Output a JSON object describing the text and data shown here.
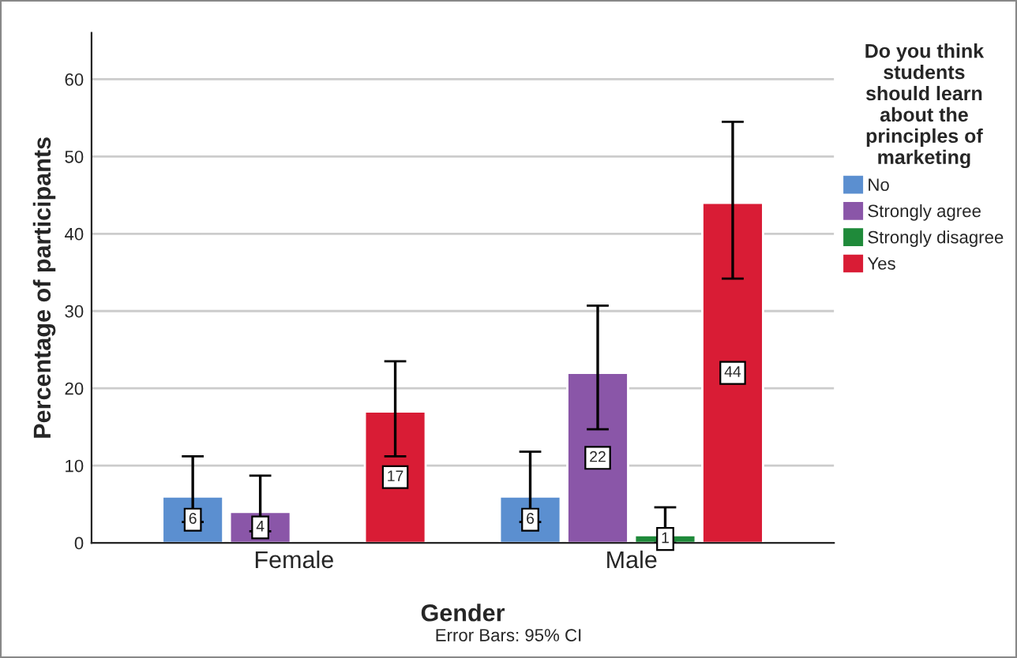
{
  "chart_data": {
    "type": "bar",
    "xlabel": "Gender",
    "ylabel": "Percentage of participants",
    "legend_title": "Do you think\nstudents\nshould learn\nabout the\nprinciples of\nmarketing",
    "categories": [
      "Female",
      "Male"
    ],
    "series": [
      {
        "name": "No",
        "color": "#5b8fd0",
        "values": [
          6,
          6
        ],
        "errors": [
          [
            2.7,
            11.2
          ],
          [
            2.7,
            11.8
          ]
        ]
      },
      {
        "name": "Strongly agree",
        "color": "#8a56a8",
        "values": [
          4,
          22
        ],
        "errors": [
          [
            1.5,
            8.7
          ],
          [
            14.7,
            30.7
          ]
        ]
      },
      {
        "name": "Strongly disagree",
        "color": "#1f8a3a",
        "values": [
          null,
          1
        ],
        "errors": [
          null,
          [
            0,
            4.6
          ]
        ]
      },
      {
        "name": "Yes",
        "color": "#d91c35",
        "values": [
          17,
          44
        ],
        "errors": [
          [
            11.2,
            23.5
          ],
          [
            34.2,
            54.5
          ]
        ]
      }
    ],
    "ylim": [
      0,
      66
    ],
    "yticks": [
      0,
      10,
      20,
      30,
      40,
      50,
      60
    ],
    "grid": "y",
    "legend": "right",
    "data_labels": true,
    "annotations": [
      "Error Bars: 95% CI"
    ]
  }
}
